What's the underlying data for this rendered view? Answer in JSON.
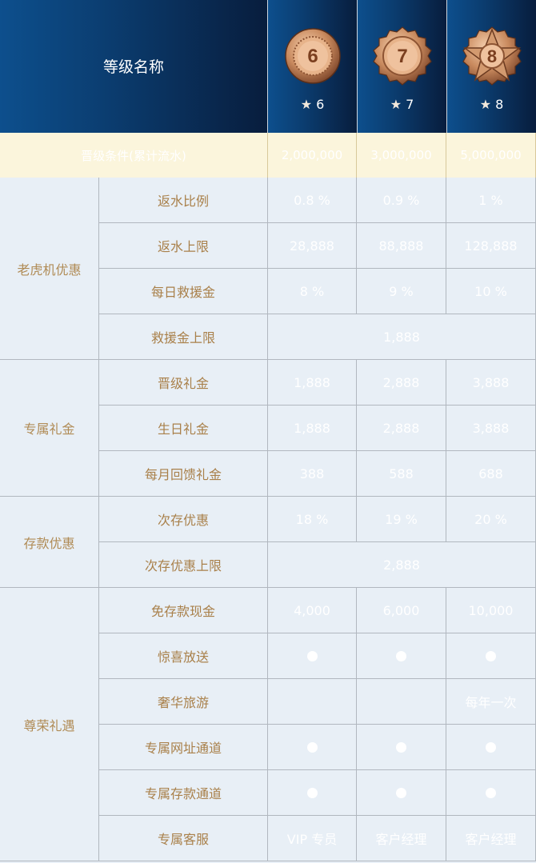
{
  "header": {
    "title": "等级名称"
  },
  "levels": [
    {
      "number": "6",
      "stars": "6",
      "medal_icon": "bronze-round-medal-icon"
    },
    {
      "number": "7",
      "stars": "7",
      "medal_icon": "bronze-scalloped-medal-icon"
    },
    {
      "number": "8",
      "stars": "8",
      "medal_icon": "bronze-star-medal-icon"
    }
  ],
  "star_glyph": "★",
  "requirement": {
    "label": "晋级条件(累计流水)",
    "values": [
      "2,000,000",
      "3,000,000",
      "5,000,000"
    ]
  },
  "categories": [
    {
      "name": "老虎机优惠"
    },
    {
      "name": "专属礼金"
    },
    {
      "name": "存款优惠"
    },
    {
      "name": "尊荣礼遇"
    }
  ],
  "rows": [
    {
      "label": "返水比例",
      "values": [
        "0.8 %",
        "0.9 %",
        "1 %"
      ]
    },
    {
      "label": "返水上限",
      "values": [
        "28,888",
        "88,888",
        "128,888"
      ]
    },
    {
      "label": "每日救援金",
      "values": [
        "8 %",
        "9 %",
        "10 %"
      ]
    },
    {
      "label": "救援金上限",
      "merged": "1,888"
    },
    {
      "label": "晋级礼金",
      "values": [
        "1,888",
        "2,888",
        "3,888"
      ]
    },
    {
      "label": "生日礼金",
      "values": [
        "1,888",
        "2,888",
        "3,888"
      ]
    },
    {
      "label": "每月回馈礼金",
      "values": [
        "388",
        "588",
        "688"
      ]
    },
    {
      "label": "次存优惠",
      "values": [
        "18 %",
        "19 %",
        "20 %"
      ]
    },
    {
      "label": "次存优惠上限",
      "merged": "2,888"
    },
    {
      "label": "免存款现金",
      "values": [
        "4,000",
        "6,000",
        "10,000"
      ]
    },
    {
      "label": "惊喜放送",
      "dots": [
        true,
        true,
        true
      ]
    },
    {
      "label": "奢华旅游",
      "values": [
        "",
        "",
        "每年一次"
      ]
    },
    {
      "label": "专属网址通道",
      "dots": [
        true,
        true,
        true
      ]
    },
    {
      "label": "专属存款通道",
      "dots": [
        true,
        true,
        true
      ]
    },
    {
      "label": "专属客服",
      "values": [
        "VIP 专员",
        "客户经理",
        "客户经理"
      ]
    }
  ],
  "colors": {
    "header_blue": "#0b3d70",
    "gold_text": "#a9804a",
    "table_bg": "#e8eff6",
    "requirement_bg": "#fbf5dc"
  }
}
